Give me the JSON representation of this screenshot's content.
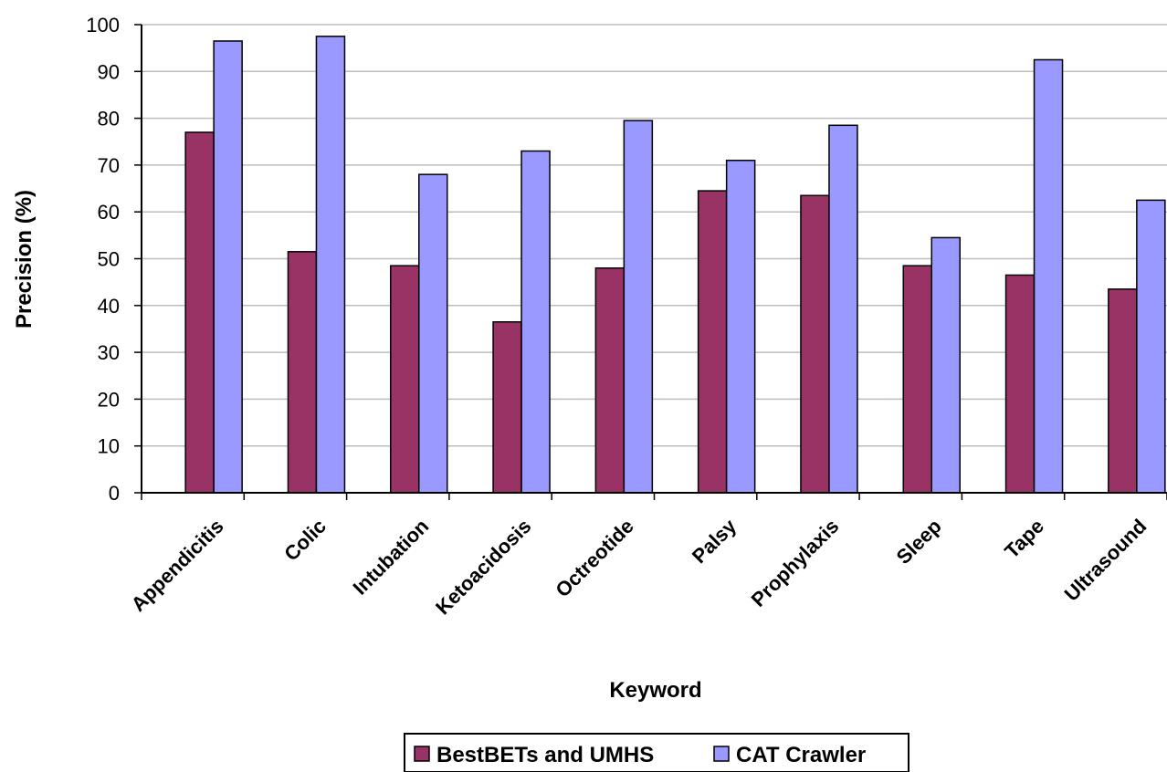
{
  "chart_data": {
    "type": "bar",
    "title": "",
    "xlabel": "Keyword",
    "ylabel": "Precision (%)",
    "ylim": [
      0,
      100
    ],
    "yticks": [
      0,
      10,
      20,
      30,
      40,
      50,
      60,
      70,
      80,
      90,
      100
    ],
    "grid": "horizontal",
    "legend_position": "bottom",
    "categories": [
      "Appendicitis",
      "Colic",
      "Intubation",
      "Ketoacidosis",
      "Octreotide",
      "Palsy",
      "Prophylaxis",
      "Sleep",
      "Tape",
      "Ultrasound"
    ],
    "series": [
      {
        "name": "BestBETs and UMHS",
        "color": "#993366",
        "values": [
          77,
          51.5,
          48.5,
          36.5,
          48,
          64.5,
          63.5,
          48.5,
          46.5,
          43.5
        ]
      },
      {
        "name": "CAT Crawler",
        "color": "#9999ff",
        "values": [
          96.5,
          97.5,
          68,
          73,
          79.5,
          71,
          78.5,
          54.5,
          92.5,
          62.5
        ]
      }
    ]
  }
}
